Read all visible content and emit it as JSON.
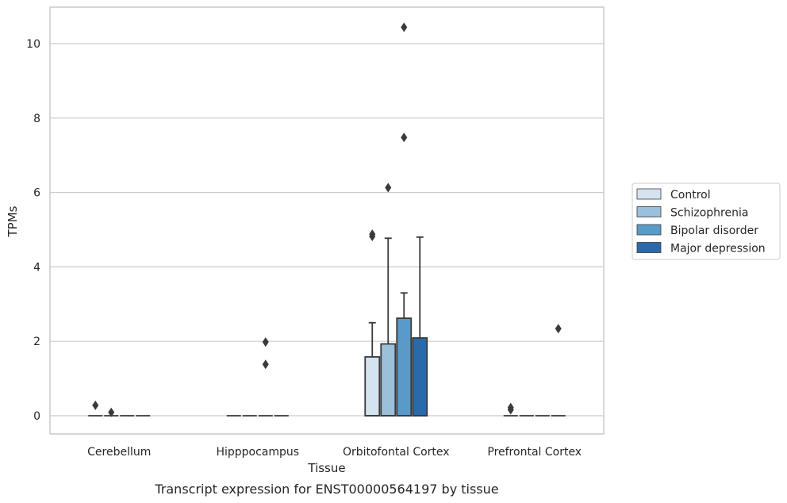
{
  "chart_data": {
    "type": "box",
    "caption": "Transcript expression for ENST00000564197 by tissue",
    "xlabel": "Tissue",
    "ylabel": "TPMs",
    "ylim": [
      -0.5,
      11.0
    ],
    "yticks": [
      "0",
      "2",
      "4",
      "6",
      "8",
      "10"
    ],
    "grid": "horizontal",
    "legend_position": "right",
    "categories": [
      "Cerebellum",
      "Hipppocampus",
      "Orbitofontal Cortex",
      "Prefrontal Cortex"
    ],
    "series": [
      {
        "name": "Control",
        "color": "#d5e3f0",
        "boxes": [
          {
            "q1": 0,
            "median": 0,
            "q3": 0,
            "whislo": 0,
            "whishi": 0,
            "fliers": [
              0.28
            ]
          },
          {
            "q1": 0,
            "median": 0,
            "q3": 0,
            "whislo": 0,
            "whishi": 0,
            "fliers": []
          },
          {
            "q1": 0,
            "median": 0,
            "q3": 1.58,
            "whislo": 0,
            "whishi": 2.5,
            "fliers": [
              4.82,
              4.88
            ]
          },
          {
            "q1": 0,
            "median": 0,
            "q3": 0,
            "whislo": 0,
            "whishi": 0,
            "fliers": [
              0.16,
              0.22
            ]
          }
        ]
      },
      {
        "name": "Schizophrenia",
        "color": "#9ac0db",
        "boxes": [
          {
            "q1": 0,
            "median": 0,
            "q3": 0,
            "whislo": 0,
            "whishi": 0,
            "fliers": [
              0.09
            ]
          },
          {
            "q1": 0,
            "median": 0,
            "q3": 0,
            "whislo": 0,
            "whishi": 0,
            "fliers": []
          },
          {
            "q1": 0,
            "median": 0,
            "q3": 1.93,
            "whislo": 0,
            "whishi": 4.77,
            "fliers": [
              6.13
            ]
          },
          {
            "q1": 0,
            "median": 0,
            "q3": 0,
            "whislo": 0,
            "whishi": 0,
            "fliers": []
          }
        ]
      },
      {
        "name": "Bipolar disorder",
        "color": "#5a9ac8",
        "boxes": [
          {
            "q1": 0,
            "median": 0,
            "q3": 0,
            "whislo": 0,
            "whishi": 0,
            "fliers": []
          },
          {
            "q1": 0,
            "median": 0,
            "q3": 0,
            "whislo": 0,
            "whishi": 0,
            "fliers": [
              1.38,
              1.98
            ]
          },
          {
            "q1": 0,
            "median": 0,
            "q3": 2.62,
            "whislo": 0,
            "whishi": 3.3,
            "fliers": [
              7.48,
              10.44
            ]
          },
          {
            "q1": 0,
            "median": 0,
            "q3": 0,
            "whislo": 0,
            "whishi": 0,
            "fliers": []
          }
        ]
      },
      {
        "name": "Major depression",
        "color": "#2a6aaa",
        "boxes": [
          {
            "q1": 0,
            "median": 0,
            "q3": 0,
            "whislo": 0,
            "whishi": 0,
            "fliers": []
          },
          {
            "q1": 0,
            "median": 0,
            "q3": 0,
            "whislo": 0,
            "whishi": 0,
            "fliers": []
          },
          {
            "q1": 0,
            "median": 0,
            "q3": 2.09,
            "whislo": 0,
            "whishi": 4.8,
            "fliers": []
          },
          {
            "q1": 0,
            "median": 0,
            "q3": 0,
            "whislo": 0,
            "whishi": 0,
            "fliers": [
              2.34
            ]
          }
        ]
      }
    ]
  }
}
